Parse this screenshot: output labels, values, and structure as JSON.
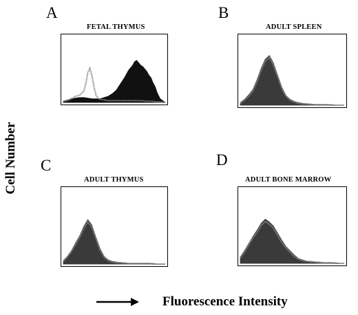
{
  "figure": {
    "ylabel": "Cell Number",
    "xlabel": "Fluorescence Intensity"
  },
  "chart_data": [
    {
      "type": "area",
      "panel": "A",
      "title": "FETAL THYMUS",
      "xlim": [
        0,
        100
      ],
      "ylim": [
        0,
        100
      ],
      "fill_color": "#111111",
      "outline_color": "#8a8a8a",
      "series": [
        {
          "x": [
            0,
            4,
            8,
            12,
            16,
            20,
            22,
            24,
            26,
            28,
            30,
            32,
            34,
            36,
            40,
            44,
            48,
            52,
            56,
            60,
            64,
            68,
            70,
            72,
            74,
            76,
            78,
            80,
            82,
            84,
            86,
            88,
            90,
            92,
            95,
            100
          ],
          "values": [
            2,
            3,
            6,
            10,
            12,
            18,
            30,
            48,
            55,
            44,
            26,
            12,
            7,
            5,
            4,
            3,
            3,
            3,
            3,
            3,
            3,
            3,
            3,
            3,
            3,
            3,
            3,
            2,
            2,
            2,
            2,
            2,
            1,
            1,
            1,
            0
          ]
        },
        {
          "x": [
            0,
            4,
            8,
            12,
            16,
            20,
            24,
            28,
            32,
            36,
            40,
            44,
            48,
            52,
            56,
            60,
            64,
            68,
            70,
            72,
            74,
            76,
            78,
            80,
            82,
            84,
            86,
            88,
            90,
            92,
            95,
            100
          ],
          "values": [
            2,
            4,
            6,
            7,
            8,
            8,
            7,
            6,
            6,
            6,
            8,
            10,
            14,
            20,
            30,
            40,
            52,
            60,
            66,
            68,
            64,
            60,
            58,
            54,
            50,
            44,
            40,
            32,
            26,
            16,
            6,
            0
          ]
        }
      ]
    },
    {
      "type": "area",
      "panel": "B",
      "title": "ADULT SPLEEN",
      "xlim": [
        0,
        100
      ],
      "ylim": [
        0,
        100
      ],
      "fill_color": "#3a3a3a",
      "outline_color": "#8a8a8a",
      "series": [
        {
          "x": [
            0,
            4,
            8,
            12,
            16,
            20,
            24,
            28,
            32,
            36,
            40,
            44,
            48,
            52,
            56,
            60,
            64,
            68,
            72,
            76,
            80,
            84,
            88,
            92,
            96,
            100
          ],
          "values": [
            3,
            8,
            14,
            22,
            36,
            54,
            68,
            74,
            62,
            44,
            26,
            14,
            8,
            5,
            3,
            2,
            2,
            1,
            1,
            1,
            1,
            1,
            0,
            0,
            0,
            0
          ]
        },
        {
          "x": [
            0,
            4,
            8,
            12,
            16,
            20,
            24,
            28,
            32,
            36,
            40,
            44,
            48,
            52,
            56,
            60,
            64,
            68,
            72,
            76,
            80,
            84,
            88,
            92,
            96,
            100
          ],
          "values": [
            4,
            9,
            16,
            24,
            39,
            57,
            71,
            77,
            65,
            46,
            28,
            15,
            9,
            6,
            4,
            3,
            2,
            2,
            1,
            1,
            1,
            1,
            1,
            0,
            0,
            0
          ]
        }
      ]
    },
    {
      "type": "area",
      "panel": "C",
      "title": "ADULT THYMUS",
      "xlim": [
        0,
        100
      ],
      "ylim": [
        0,
        100
      ],
      "fill_color": "#3a3a3a",
      "outline_color": "#8a8a8a",
      "series": [
        {
          "x": [
            0,
            4,
            8,
            12,
            16,
            20,
            24,
            28,
            32,
            36,
            40,
            44,
            48,
            52,
            56,
            60,
            64,
            68,
            72,
            76,
            80,
            84,
            88,
            92,
            96,
            100
          ],
          "values": [
            4,
            10,
            18,
            28,
            38,
            50,
            60,
            52,
            36,
            20,
            10,
            5,
            3,
            2,
            2,
            1,
            1,
            1,
            1,
            1,
            1,
            1,
            0,
            0,
            0,
            0
          ]
        },
        {
          "x": [
            0,
            4,
            8,
            12,
            16,
            20,
            24,
            28,
            32,
            36,
            40,
            44,
            48,
            52,
            56,
            60,
            64,
            68,
            72,
            76,
            80,
            84,
            88,
            92,
            96,
            100
          ],
          "values": [
            5,
            11,
            19,
            30,
            40,
            53,
            63,
            55,
            38,
            22,
            11,
            6,
            4,
            3,
            2,
            2,
            1,
            1,
            1,
            1,
            1,
            1,
            1,
            0,
            0,
            0
          ]
        }
      ]
    },
    {
      "type": "area",
      "panel": "D",
      "title": "ADULT BONE MARROW",
      "xlim": [
        0,
        100
      ],
      "ylim": [
        0,
        100
      ],
      "fill_color": "#3a3a3a",
      "outline_color": "#8a8a8a",
      "series": [
        {
          "x": [
            0,
            4,
            8,
            12,
            16,
            20,
            24,
            28,
            32,
            36,
            40,
            44,
            48,
            52,
            56,
            60,
            64,
            68,
            72,
            76,
            80,
            84,
            88,
            92,
            96,
            100
          ],
          "values": [
            8,
            16,
            26,
            36,
            44,
            54,
            60,
            56,
            50,
            40,
            30,
            22,
            16,
            10,
            6,
            4,
            3,
            2,
            2,
            1,
            1,
            1,
            1,
            0,
            0,
            0
          ]
        },
        {
          "x": [
            0,
            4,
            8,
            12,
            16,
            20,
            24,
            28,
            32,
            36,
            40,
            44,
            48,
            52,
            56,
            60,
            64,
            68,
            72,
            76,
            80,
            84,
            88,
            92,
            96,
            100
          ],
          "values": [
            9,
            18,
            28,
            38,
            47,
            57,
            63,
            59,
            53,
            43,
            33,
            24,
            18,
            12,
            7,
            5,
            3,
            3,
            2,
            2,
            1,
            1,
            1,
            1,
            0,
            0
          ]
        }
      ]
    }
  ]
}
